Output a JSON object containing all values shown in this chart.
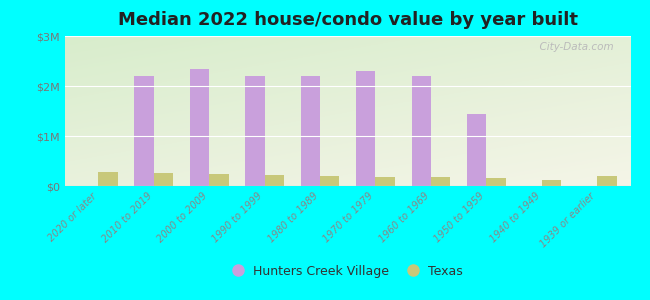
{
  "title": "Median 2022 house/condo value by year built",
  "background_color": "#00FFFF",
  "plot_bg_top_left": "#d8edcc",
  "plot_bg_bottom_right": "#f5f5e8",
  "categories": [
    "2020 or later",
    "2010 to 2019",
    "2000 to 2009",
    "1990 to 1999",
    "1980 to 1989",
    "1970 to 1979",
    "1960 to 1969",
    "1950 to 1959",
    "1940 to 1949",
    "1939 or earlier"
  ],
  "hunters_creek": [
    0,
    2200000,
    2350000,
    2200000,
    2200000,
    2300000,
    2200000,
    1450000,
    0,
    0
  ],
  "texas": [
    290000,
    270000,
    250000,
    230000,
    195000,
    185000,
    175000,
    155000,
    130000,
    195000
  ],
  "hcv_color": "#c9a0dc",
  "texas_color": "#c8c87a",
  "ylim": [
    0,
    3000000
  ],
  "yticks": [
    0,
    1000000,
    2000000,
    3000000
  ],
  "ytick_labels": [
    "$0",
    "$1M",
    "$2M",
    "$3M"
  ],
  "bar_width": 0.35,
  "watermark": "  City-Data.com",
  "legend_hcv": "Hunters Creek Village",
  "legend_texas": "Texas"
}
